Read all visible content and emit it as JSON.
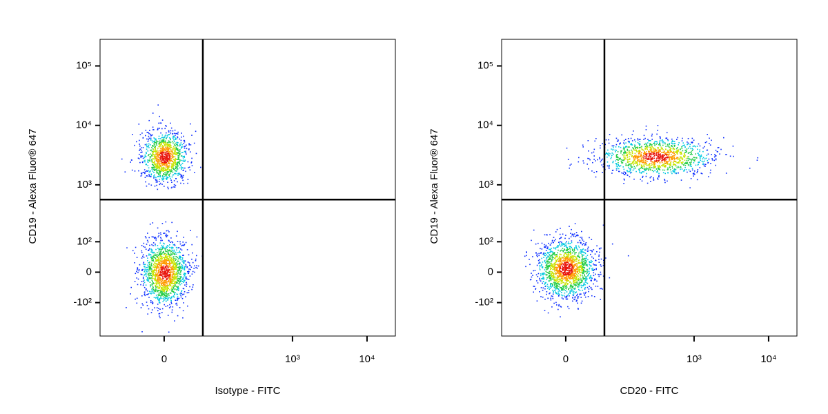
{
  "chart_data": [
    {
      "type": "density",
      "xlabel": "Isotype - FITC",
      "ylabel": "CD19 - Alexa Fluor® 647",
      "xscale": "biexponential",
      "yscale": "biexponential",
      "xlim": [
        -135,
        24000
      ],
      "ylim": [
        -400,
        280000
      ],
      "xticks": [
        0,
        {
          "value": 1000,
          "label": "10³"
        },
        {
          "value": 10000,
          "label": "10⁴"
        }
      ],
      "yticks": [
        {
          "value": -100,
          "label": "-10²"
        },
        0,
        {
          "value": 100,
          "label": "10²"
        },
        {
          "value": 1000,
          "label": "10³"
        },
        {
          "value": 10000,
          "label": "10⁴"
        },
        {
          "value": 100000,
          "label": "10⁵"
        }
      ],
      "gates": {
        "x": 57,
        "y": 563
      },
      "populations": [
        {
          "x": 0,
          "y": 3000
        },
        {
          "x": 0,
          "y": 0
        }
      ]
    },
    {
      "type": "density",
      "xlabel": "CD20 - FITC",
      "ylabel": "CD19 - Alexa Fluor® 647",
      "xscale": "biexponential",
      "yscale": "biexponential",
      "xlim": [
        -135,
        24000
      ],
      "ylim": [
        -400,
        280000
      ],
      "xticks": [
        0,
        {
          "value": 1000,
          "label": "10³"
        },
        {
          "value": 10000,
          "label": "10⁴"
        }
      ],
      "yticks": [
        {
          "value": -100,
          "label": "-10²"
        },
        0,
        {
          "value": 100,
          "label": "10²"
        },
        {
          "value": 1000,
          "label": "10³"
        },
        {
          "value": 10000,
          "label": "10⁴"
        },
        {
          "value": 100000,
          "label": "10⁵"
        }
      ],
      "gates": {
        "x": 57,
        "y": 563
      },
      "populations": [
        {
          "x": 0,
          "y": 10
        },
        {
          "x": 300,
          "y": 3000
        }
      ]
    }
  ]
}
